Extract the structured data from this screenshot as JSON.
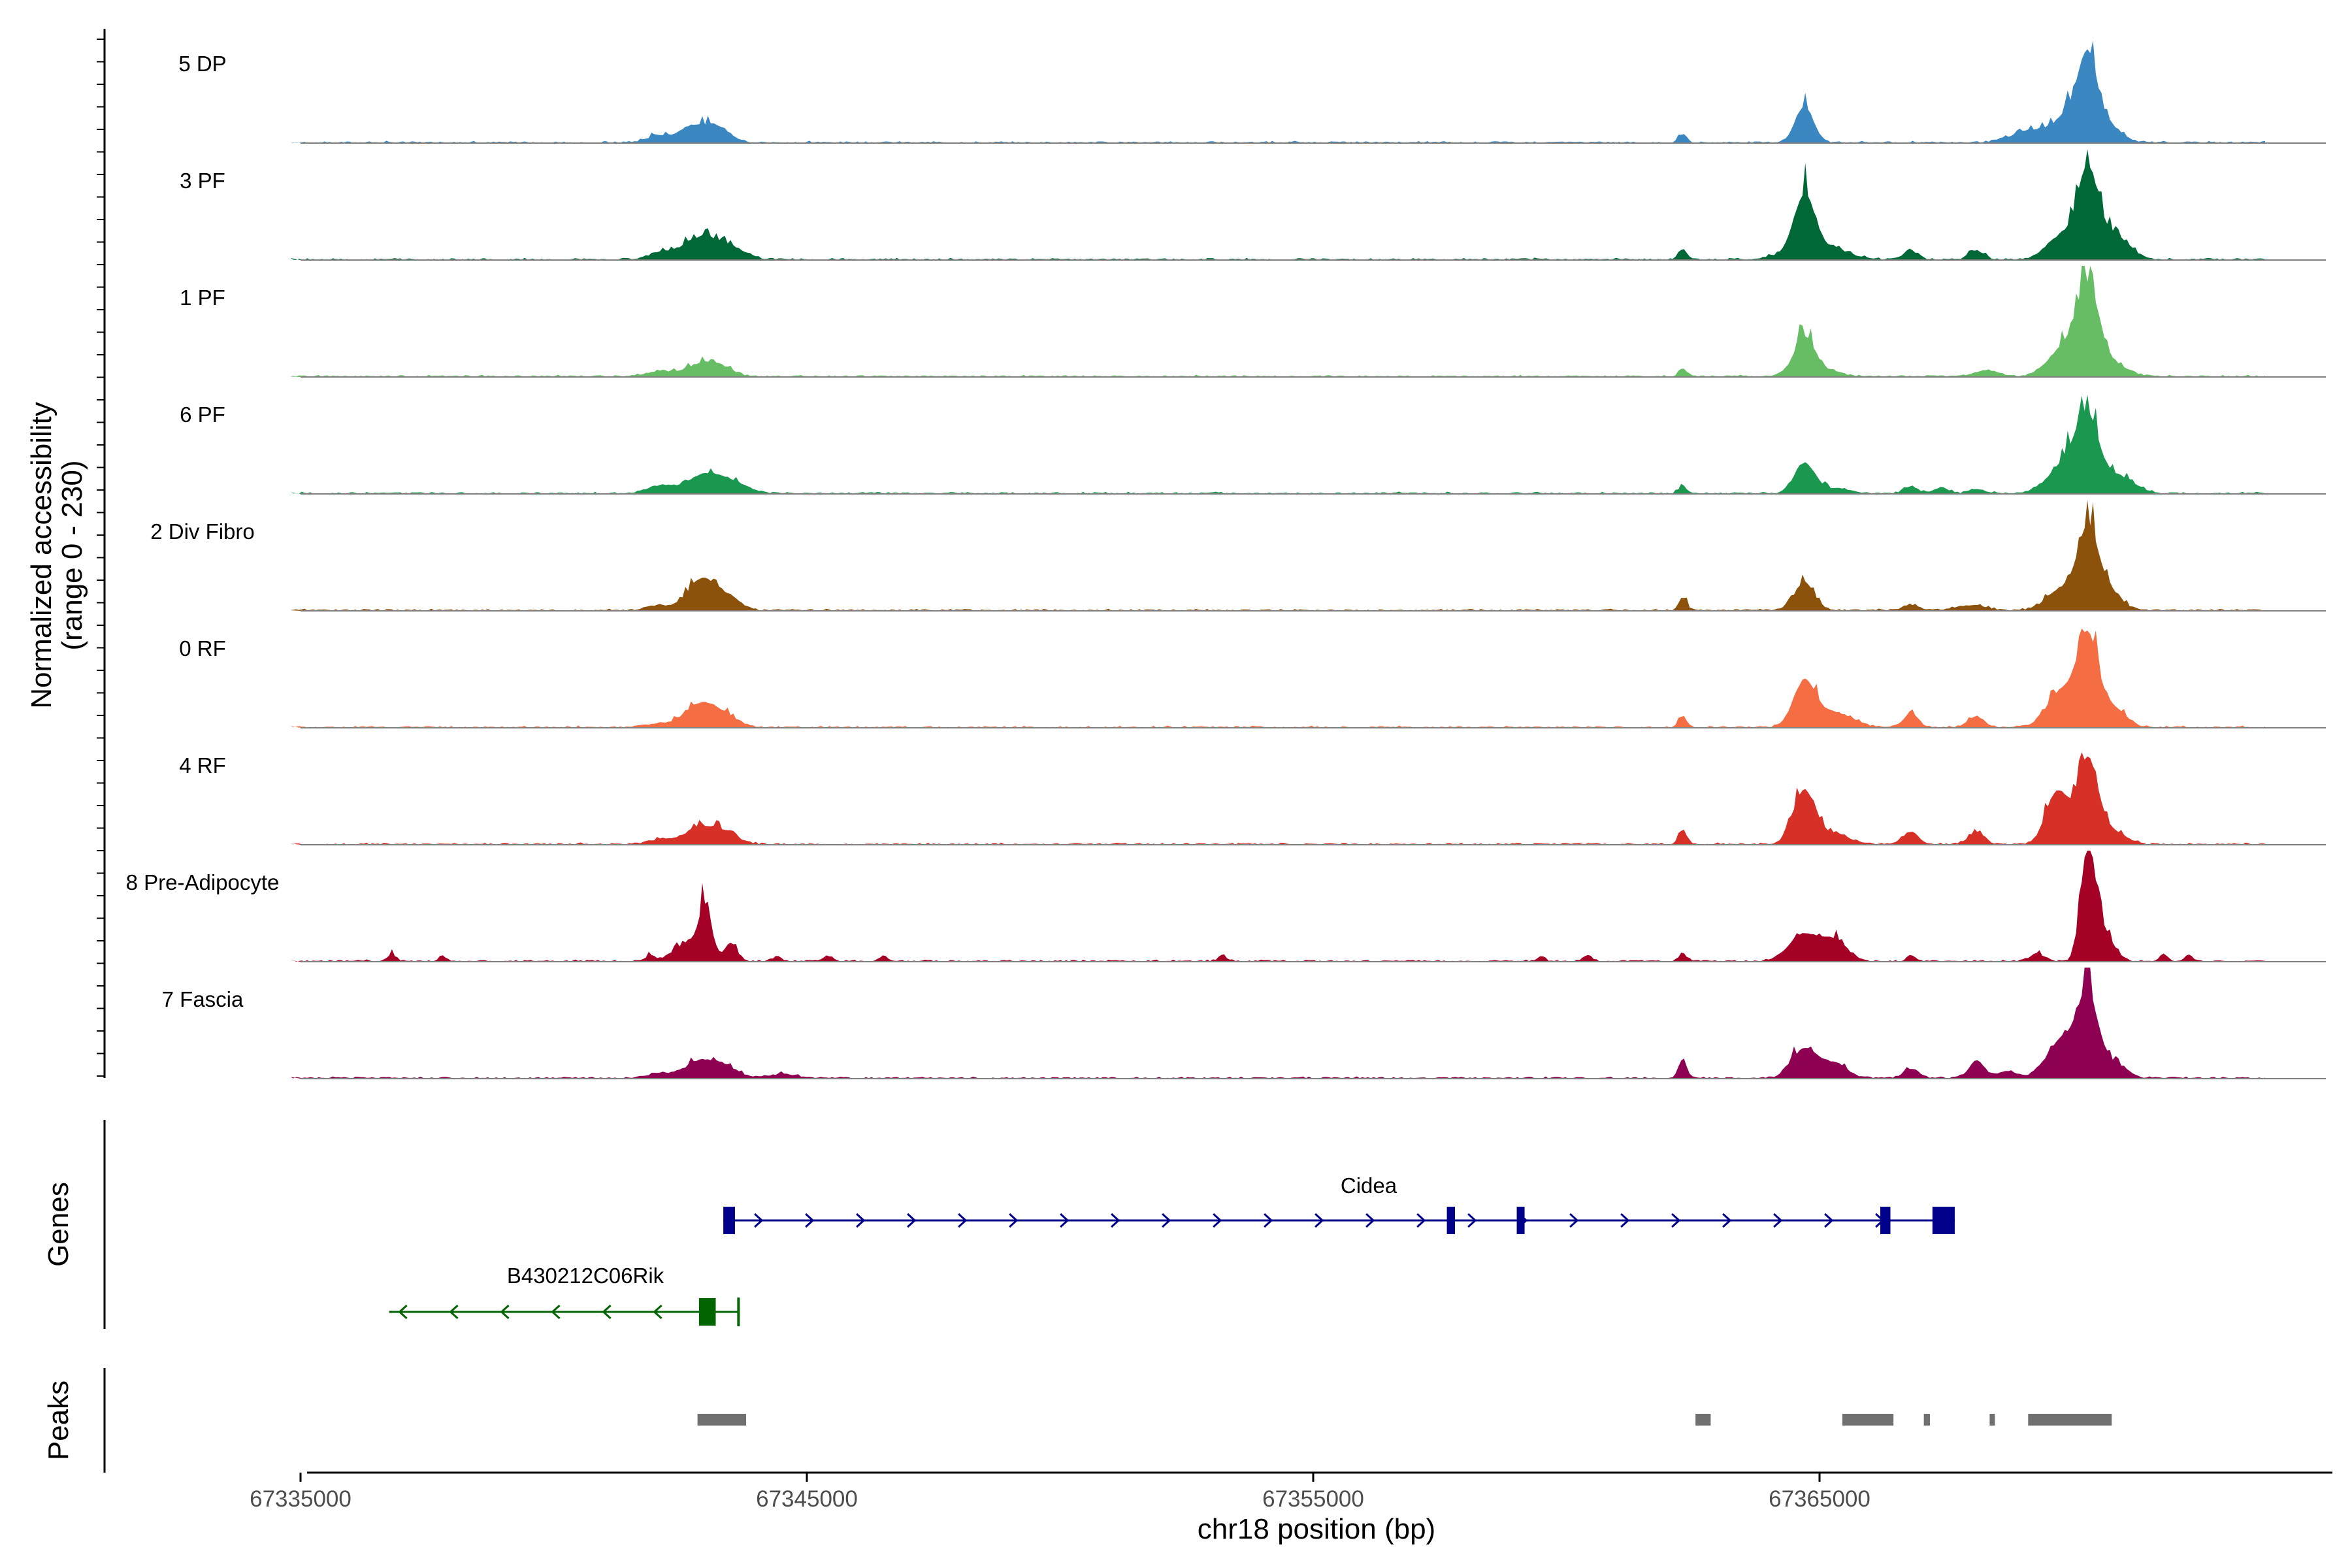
{
  "chart_data": {
    "type": "area",
    "title": "",
    "xlabel": "chr18 position (bp)",
    "ylabel": "Normalized accessibility",
    "ylabel_sub": "(range 0 - 230)",
    "xlim": [
      67335000,
      67375000
    ],
    "ylim": [
      0,
      230
    ],
    "x_ticks": [
      67335000,
      67345000,
      67355000,
      67365000
    ],
    "x_tick_labels": [
      "67335000",
      "67345000",
      "67355000",
      "67365000"
    ],
    "panel_labels": {
      "genes": "Genes",
      "peaks": "Peaks"
    },
    "tracks": [
      {
        "name": "5 DP",
        "color": "#3A87C2",
        "peaks": [
          [
            67342100,
            15,
            250
          ],
          [
            67342700,
            30,
            220
          ],
          [
            67343200,
            35,
            260
          ],
          [
            67362300,
            16,
            80
          ],
          [
            67364700,
            74,
            180
          ],
          [
            67369200,
            25,
            400
          ],
          [
            67370000,
            60,
            300
          ],
          [
            67370300,
            145,
            180
          ],
          [
            67370700,
            35,
            250
          ]
        ]
      },
      {
        "name": "3 PF",
        "color": "#006837",
        "peaks": [
          [
            67342100,
            12,
            250
          ],
          [
            67342900,
            45,
            350
          ],
          [
            67343500,
            20,
            300
          ],
          [
            67362300,
            22,
            80
          ],
          [
            67364700,
            108,
            200
          ],
          [
            67364900,
            30,
            500
          ],
          [
            67366800,
            18,
            150
          ],
          [
            67368100,
            18,
            150
          ],
          [
            67369800,
            50,
            300
          ],
          [
            67370300,
            170,
            200
          ],
          [
            67370800,
            50,
            300
          ]
        ]
      },
      {
        "name": "1 PF",
        "color": "#66BD63",
        "peaks": [
          [
            67342100,
            10,
            250
          ],
          [
            67342900,
            25,
            300
          ],
          [
            67343300,
            15,
            250
          ],
          [
            67362300,
            17,
            80
          ],
          [
            67364700,
            68,
            200
          ],
          [
            67364900,
            15,
            400
          ],
          [
            67368300,
            12,
            250
          ],
          [
            67369800,
            55,
            300
          ],
          [
            67370300,
            175,
            220
          ],
          [
            67370800,
            25,
            300
          ]
        ]
      },
      {
        "name": "6 PF",
        "color": "#1A9850",
        "peaks": [
          [
            67342100,
            15,
            250
          ],
          [
            67343000,
            40,
            350
          ],
          [
            67343600,
            15,
            300
          ],
          [
            67362300,
            15,
            80
          ],
          [
            67364700,
            62,
            200
          ],
          [
            67365300,
            10,
            300
          ],
          [
            67366800,
            12,
            150
          ],
          [
            67367400,
            10,
            150
          ],
          [
            67368100,
            10,
            150
          ],
          [
            67369900,
            65,
            350
          ],
          [
            67370300,
            130,
            220
          ],
          [
            67370900,
            35,
            300
          ]
        ]
      },
      {
        "name": "2 Div Fibro",
        "color": "#8C510A",
        "peaks": [
          [
            67342100,
            10,
            250
          ],
          [
            67342900,
            62,
            250
          ],
          [
            67343400,
            30,
            250
          ],
          [
            67362300,
            27,
            80
          ],
          [
            67364700,
            56,
            200
          ],
          [
            67366800,
            12,
            150
          ],
          [
            67368000,
            10,
            300
          ],
          [
            67369800,
            45,
            300
          ],
          [
            67370300,
            154,
            200
          ],
          [
            67370700,
            40,
            250
          ]
        ]
      },
      {
        "name": "0 RF",
        "color": "#F46D43",
        "peaks": [
          [
            67342100,
            8,
            250
          ],
          [
            67342900,
            48,
            300
          ],
          [
            67343400,
            20,
            250
          ],
          [
            67362300,
            22,
            80
          ],
          [
            67364700,
            92,
            220
          ],
          [
            67365300,
            30,
            350
          ],
          [
            67366800,
            27,
            150
          ],
          [
            67368100,
            22,
            150
          ],
          [
            67369800,
            75,
            300
          ],
          [
            67370300,
            175,
            200
          ],
          [
            67370800,
            40,
            250
          ]
        ]
      },
      {
        "name": "4 RF",
        "color": "#D73027",
        "peaks": [
          [
            67342100,
            10,
            250
          ],
          [
            67342900,
            35,
            300
          ],
          [
            67343400,
            20,
            250
          ],
          [
            67362300,
            30,
            80
          ],
          [
            67364700,
            110,
            220
          ],
          [
            67365300,
            20,
            300
          ],
          [
            67366800,
            25,
            150
          ],
          [
            67368100,
            25,
            150
          ],
          [
            67369700,
            110,
            220
          ],
          [
            67370300,
            176,
            200
          ],
          [
            67370800,
            25,
            250
          ]
        ]
      },
      {
        "name": "8 Pre-Adipocyte",
        "color": "#A50026",
        "peaks": [
          [
            67336800,
            15,
            80
          ],
          [
            67337800,
            10,
            80
          ],
          [
            67341900,
            12,
            80
          ],
          [
            67342700,
            40,
            300
          ],
          [
            67343000,
            95,
            120
          ],
          [
            67343500,
            35,
            120
          ],
          [
            67344400,
            10,
            80
          ],
          [
            67345400,
            12,
            80
          ],
          [
            67346500,
            10,
            80
          ],
          [
            67353200,
            12,
            80
          ],
          [
            67359500,
            10,
            80
          ],
          [
            67360400,
            12,
            80
          ],
          [
            67362300,
            14,
            80
          ],
          [
            67364700,
            55,
            300
          ],
          [
            67365300,
            40,
            250
          ],
          [
            67366800,
            12,
            80
          ],
          [
            67369300,
            15,
            150
          ],
          [
            67370300,
            228,
            140
          ],
          [
            67370600,
            60,
            200
          ],
          [
            67371800,
            15,
            80
          ],
          [
            67372300,
            12,
            80
          ]
        ]
      },
      {
        "name": "7 Fascia",
        "color": "#8E0152",
        "peaks": [
          [
            67342100,
            10,
            250
          ],
          [
            67342900,
            35,
            300
          ],
          [
            67343400,
            20,
            250
          ],
          [
            67344500,
            8,
            300
          ],
          [
            67362300,
            38,
            80
          ],
          [
            67364700,
            60,
            250
          ],
          [
            67365300,
            30,
            250
          ],
          [
            67366800,
            20,
            150
          ],
          [
            67368100,
            35,
            150
          ],
          [
            67368700,
            15,
            200
          ],
          [
            67369800,
            80,
            300
          ],
          [
            67370300,
            160,
            200
          ],
          [
            67370800,
            30,
            250
          ]
        ]
      }
    ],
    "genes": [
      {
        "name": "Cidea",
        "strand": "+",
        "start": 67343350,
        "end": 67367670,
        "exons": [
          [
            67343350,
            67343580
          ],
          [
            67357640,
            67357800
          ],
          [
            67359020,
            67359160
          ],
          [
            67366200,
            67366400
          ],
          [
            67367230,
            67367670
          ]
        ]
      },
      {
        "name": "B430212C06Rik",
        "strand": "-",
        "start": 67336750,
        "end": 67343650,
        "exons": [
          [
            67342870,
            67343200
          ]
        ]
      }
    ],
    "peaks": [
      [
        67342840,
        67343800
      ],
      [
        67362550,
        67362850
      ],
      [
        67365450,
        67366460
      ],
      [
        67367060,
        67367180
      ],
      [
        67368360,
        67368460
      ],
      [
        67369120,
        67370770
      ]
    ]
  }
}
